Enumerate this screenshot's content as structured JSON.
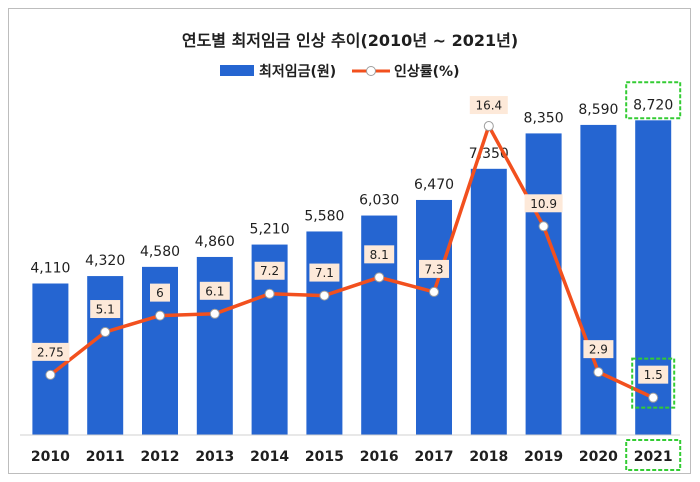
{
  "chart_data": {
    "type": "bar+line",
    "title": "연도별 최저임금 인상 추이(2010년 ~ 2021년)",
    "categories": [
      "2010",
      "2011",
      "2012",
      "2013",
      "2014",
      "2015",
      "2016",
      "2017",
      "2018",
      "2019",
      "2020",
      "2021"
    ],
    "series": [
      {
        "name": "최저임금(원)",
        "type": "bar",
        "color": "#2565d1",
        "values": [
          4110,
          4320,
          4580,
          4860,
          5210,
          5580,
          6030,
          6470,
          7350,
          8350,
          8590,
          8720
        ],
        "labels": [
          "4,110",
          "4,320",
          "4,580",
          "4,860",
          "5,210",
          "5,580",
          "6,030",
          "6,470",
          "7,350",
          "8,350",
          "8,590",
          "8,720"
        ]
      },
      {
        "name": "인상률(%)",
        "type": "line",
        "color": "#f2501e",
        "values": [
          2.75,
          5.1,
          6,
          6.1,
          7.2,
          7.1,
          8.1,
          7.3,
          16.4,
          10.9,
          2.9,
          1.5
        ],
        "labels": [
          "2.75",
          "5.1",
          "6",
          "6.1",
          "7.2",
          "7.1",
          "8.1",
          "7.3",
          "16.4",
          "10.9",
          "2.9",
          "1.5"
        ]
      }
    ],
    "legend_position": "top-center",
    "highlight": {
      "category": "2021",
      "color": "#33cc33"
    },
    "grid": false
  }
}
